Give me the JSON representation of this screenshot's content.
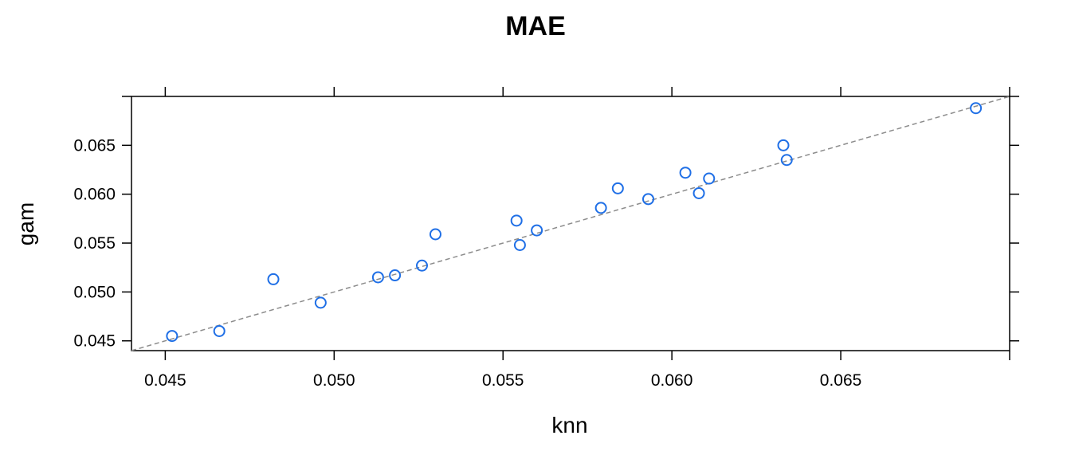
{
  "chart_data": {
    "type": "scatter",
    "title": "MAE",
    "xlabel": "knn",
    "ylabel": "gam",
    "xlim": [
      0.044,
      0.07
    ],
    "ylim": [
      0.044,
      0.07
    ],
    "x_ticks": [
      "0.045",
      "0.050",
      "0.055",
      "0.060",
      "0.065"
    ],
    "y_ticks": [
      "0.045",
      "0.050",
      "0.055",
      "0.060",
      "0.065"
    ],
    "reference_line": "y = x",
    "grid": false,
    "points": [
      {
        "x": 0.0452,
        "y": 0.0455
      },
      {
        "x": 0.0466,
        "y": 0.046
      },
      {
        "x": 0.0482,
        "y": 0.0513
      },
      {
        "x": 0.0496,
        "y": 0.0489
      },
      {
        "x": 0.0513,
        "y": 0.0515
      },
      {
        "x": 0.0518,
        "y": 0.0517
      },
      {
        "x": 0.0526,
        "y": 0.0527
      },
      {
        "x": 0.053,
        "y": 0.0559
      },
      {
        "x": 0.0554,
        "y": 0.0573
      },
      {
        "x": 0.0555,
        "y": 0.0548
      },
      {
        "x": 0.056,
        "y": 0.0563
      },
      {
        "x": 0.0579,
        "y": 0.0586
      },
      {
        "x": 0.0584,
        "y": 0.0606
      },
      {
        "x": 0.0593,
        "y": 0.0595
      },
      {
        "x": 0.0604,
        "y": 0.0622
      },
      {
        "x": 0.0608,
        "y": 0.0601
      },
      {
        "x": 0.0611,
        "y": 0.0616
      },
      {
        "x": 0.0633,
        "y": 0.065
      },
      {
        "x": 0.0634,
        "y": 0.0635
      },
      {
        "x": 0.069,
        "y": 0.0688
      }
    ]
  },
  "colors": {
    "point": "#1f6fe6",
    "reference_line": "#8c8c8c",
    "axis": "#000000"
  }
}
